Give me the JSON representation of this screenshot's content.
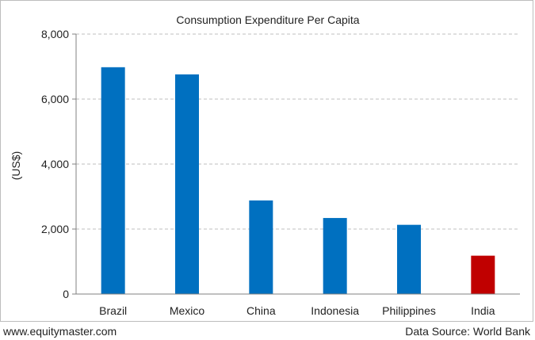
{
  "chart_data": {
    "type": "bar",
    "title": "Consumption Expenditure Per Capita",
    "ylabel": "(US$)",
    "xlabel": "",
    "categories": [
      "Brazil",
      "Mexico",
      "China",
      "Indonesia",
      "Philippines",
      "India"
    ],
    "values": [
      6980,
      6760,
      2880,
      2340,
      2130,
      1180
    ],
    "ylim": [
      0,
      8000
    ],
    "yticks": [
      0,
      2000,
      4000,
      6000,
      8000
    ],
    "ytick_labels": [
      "0",
      "2,000",
      "4,000",
      "6,000",
      "8,000"
    ],
    "grid": true,
    "legend": "none",
    "colors": {
      "default": "#0070c0",
      "highlight": "#c00000",
      "highlight_category": "India",
      "gridline": "#bfbfbf",
      "axis": "#808080"
    }
  },
  "footer": {
    "left": "www.equitymaster.com",
    "right": "Data Source: World Bank"
  }
}
